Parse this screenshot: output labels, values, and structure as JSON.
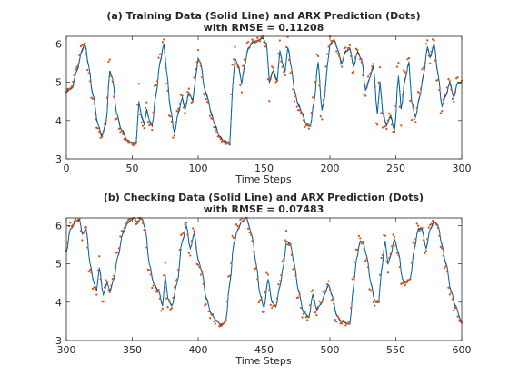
{
  "chart_data": [
    {
      "type": "line",
      "title": [
        "(a) Training Data (Solid Line) and ARX Prediction (Dots)",
        "with RMSE = 0.11208"
      ],
      "xlabel": "Time Steps",
      "ylabel": "",
      "xlim": [
        0,
        300
      ],
      "ylim": [
        3,
        6.2
      ],
      "xticks": [
        0,
        50,
        100,
        150,
        200,
        250,
        300
      ],
      "yticks": [
        3,
        4,
        5,
        6
      ],
      "grid": false,
      "series_colors": {
        "data": "#000000",
        "model": "#0072BD",
        "prediction": "#D95319"
      },
      "key_points": [
        [
          0,
          4.75
        ],
        [
          4,
          4.85
        ],
        [
          8,
          5.3
        ],
        [
          12,
          5.85
        ],
        [
          14,
          6.0
        ],
        [
          17,
          5.4
        ],
        [
          20,
          4.7
        ],
        [
          24,
          3.9
        ],
        [
          27,
          3.6
        ],
        [
          30,
          3.9
        ],
        [
          33,
          5.3
        ],
        [
          35,
          5.1
        ],
        [
          38,
          4.2
        ],
        [
          42,
          3.75
        ],
        [
          46,
          3.5
        ],
        [
          50,
          3.4
        ],
        [
          53,
          3.4
        ],
        [
          55,
          4.5
        ],
        [
          57,
          4.1
        ],
        [
          59,
          3.9
        ],
        [
          61,
          4.3
        ],
        [
          63,
          4.0
        ],
        [
          65,
          3.85
        ],
        [
          68,
          4.7
        ],
        [
          71,
          5.5
        ],
        [
          74,
          6.0
        ],
        [
          76,
          5.3
        ],
        [
          79,
          4.3
        ],
        [
          82,
          3.7
        ],
        [
          85,
          4.2
        ],
        [
          88,
          4.6
        ],
        [
          90,
          4.3
        ],
        [
          93,
          4.7
        ],
        [
          96,
          4.55
        ],
        [
          98,
          5.1
        ],
        [
          100,
          5.6
        ],
        [
          102,
          5.5
        ],
        [
          105,
          4.8
        ],
        [
          107,
          4.6
        ],
        [
          110,
          4.2
        ],
        [
          113,
          3.85
        ],
        [
          116,
          3.6
        ],
        [
          120,
          3.45
        ],
        [
          124,
          3.4
        ],
        [
          126,
          4.8
        ],
        [
          128,
          5.6
        ],
        [
          131,
          5.4
        ],
        [
          133,
          4.95
        ],
        [
          135,
          5.4
        ],
        [
          138,
          5.9
        ],
        [
          142,
          6.05
        ],
        [
          146,
          6.1
        ],
        [
          149,
          6.15
        ],
        [
          152,
          6.0
        ],
        [
          154,
          5.0
        ],
        [
          157,
          5.3
        ],
        [
          160,
          5.05
        ],
        [
          162,
          5.8
        ],
        [
          164,
          5.5
        ],
        [
          166,
          5.3
        ],
        [
          168,
          5.9
        ],
        [
          171,
          5.35
        ],
        [
          173,
          4.8
        ],
        [
          176,
          4.4
        ],
        [
          179,
          4.2
        ],
        [
          182,
          3.9
        ],
        [
          185,
          3.85
        ],
        [
          188,
          4.5
        ],
        [
          191,
          5.5
        ],
        [
          194,
          4.3
        ],
        [
          196,
          4.6
        ],
        [
          198,
          5.4
        ],
        [
          200,
          6.0
        ],
        [
          203,
          6.1
        ],
        [
          206,
          5.85
        ],
        [
          209,
          5.5
        ],
        [
          212,
          5.8
        ],
        [
          215,
          5.9
        ],
        [
          218,
          5.4
        ],
        [
          221,
          5.8
        ],
        [
          224,
          5.6
        ],
        [
          227,
          4.8
        ],
        [
          230,
          5.1
        ],
        [
          233,
          5.4
        ],
        [
          236,
          4.2
        ],
        [
          238,
          5.0
        ],
        [
          240,
          4.2
        ],
        [
          243,
          3.9
        ],
        [
          246,
          4.1
        ],
        [
          249,
          3.75
        ],
        [
          252,
          5.15
        ],
        [
          254,
          4.3
        ],
        [
          257,
          5.1
        ],
        [
          260,
          5.5
        ],
        [
          262,
          4.5
        ],
        [
          265,
          4.1
        ],
        [
          268,
          4.6
        ],
        [
          271,
          5.2
        ],
        [
          274,
          5.9
        ],
        [
          276,
          5.65
        ],
        [
          279,
          6.0
        ],
        [
          282,
          5.2
        ],
        [
          285,
          4.4
        ],
        [
          288,
          4.65
        ],
        [
          291,
          5.0
        ],
        [
          294,
          4.6
        ],
        [
          297,
          5.0
        ],
        [
          300,
          5.0
        ]
      ]
    },
    {
      "type": "line",
      "title": [
        "(b) Checking Data (Solid Line) and ARX Prediction (Dots)",
        "with RMSE = 0.07483"
      ],
      "xlabel": "Time Steps",
      "ylabel": "",
      "xlim": [
        300,
        600
      ],
      "ylim": [
        3,
        6.2
      ],
      "xticks": [
        300,
        350,
        400,
        450,
        500,
        550,
        600
      ],
      "yticks": [
        3,
        4,
        5,
        6
      ],
      "grid": false,
      "series_colors": {
        "data": "#000000",
        "model": "#0072BD",
        "prediction": "#D95319"
      },
      "key_points": [
        [
          300,
          5.3
        ],
        [
          303,
          5.9
        ],
        [
          307,
          6.1
        ],
        [
          310,
          6.15
        ],
        [
          312,
          5.8
        ],
        [
          315,
          5.9
        ],
        [
          318,
          5.0
        ],
        [
          321,
          4.5
        ],
        [
          323,
          4.3
        ],
        [
          325,
          4.9
        ],
        [
          328,
          4.2
        ],
        [
          331,
          4.5
        ],
        [
          333,
          4.3
        ],
        [
          336,
          4.6
        ],
        [
          339,
          5.2
        ],
        [
          343,
          5.8
        ],
        [
          347,
          6.1
        ],
        [
          351,
          6.2
        ],
        [
          354,
          6.1
        ],
        [
          357,
          6.2
        ],
        [
          360,
          5.9
        ],
        [
          363,
          5.0
        ],
        [
          366,
          4.5
        ],
        [
          370,
          4.3
        ],
        [
          373,
          3.9
        ],
        [
          375,
          4.7
        ],
        [
          377,
          4.1
        ],
        [
          380,
          3.9
        ],
        [
          384,
          4.5
        ],
        [
          388,
          5.6
        ],
        [
          391,
          6.0
        ],
        [
          394,
          5.4
        ],
        [
          397,
          5.8
        ],
        [
          400,
          5.1
        ],
        [
          403,
          4.8
        ],
        [
          406,
          4.1
        ],
        [
          410,
          3.7
        ],
        [
          414,
          3.5
        ],
        [
          418,
          3.4
        ],
        [
          421,
          3.5
        ],
        [
          424,
          4.5
        ],
        [
          427,
          5.5
        ],
        [
          430,
          5.9
        ],
        [
          433,
          6.1
        ],
        [
          437,
          6.2
        ],
        [
          439,
          5.95
        ],
        [
          441,
          5.7
        ],
        [
          444,
          5.0
        ],
        [
          447,
          4.2
        ],
        [
          450,
          3.85
        ],
        [
          453,
          4.6
        ],
        [
          456,
          4.0
        ],
        [
          459,
          3.9
        ],
        [
          462,
          4.4
        ],
        [
          465,
          5.0
        ],
        [
          467,
          5.6
        ],
        [
          470,
          5.5
        ],
        [
          473,
          5.0
        ],
        [
          476,
          4.3
        ],
        [
          480,
          3.75
        ],
        [
          484,
          3.6
        ],
        [
          487,
          4.2
        ],
        [
          490,
          3.8
        ],
        [
          493,
          3.95
        ],
        [
          496,
          4.2
        ],
        [
          499,
          4.45
        ],
        [
          502,
          4.15
        ],
        [
          505,
          3.65
        ],
        [
          509,
          3.5
        ],
        [
          512,
          3.45
        ],
        [
          515,
          3.45
        ],
        [
          518,
          4.4
        ],
        [
          520,
          5.1
        ],
        [
          523,
          5.6
        ],
        [
          525,
          5.55
        ],
        [
          528,
          5.2
        ],
        [
          531,
          4.5
        ],
        [
          534,
          4.05
        ],
        [
          537,
          4.0
        ],
        [
          539,
          4.8
        ],
        [
          542,
          5.6
        ],
        [
          544,
          5.0
        ],
        [
          546,
          5.2
        ],
        [
          549,
          5.65
        ],
        [
          552,
          5.3
        ],
        [
          555,
          4.6
        ],
        [
          558,
          4.5
        ],
        [
          561,
          4.6
        ],
        [
          564,
          5.4
        ],
        [
          567,
          5.9
        ],
        [
          570,
          5.9
        ],
        [
          573,
          5.4
        ],
        [
          576,
          5.9
        ],
        [
          579,
          6.1
        ],
        [
          582,
          6.0
        ],
        [
          585,
          5.5
        ],
        [
          588,
          5.0
        ],
        [
          592,
          4.3
        ],
        [
          595,
          3.9
        ],
        [
          600,
          3.5
        ]
      ]
    }
  ]
}
